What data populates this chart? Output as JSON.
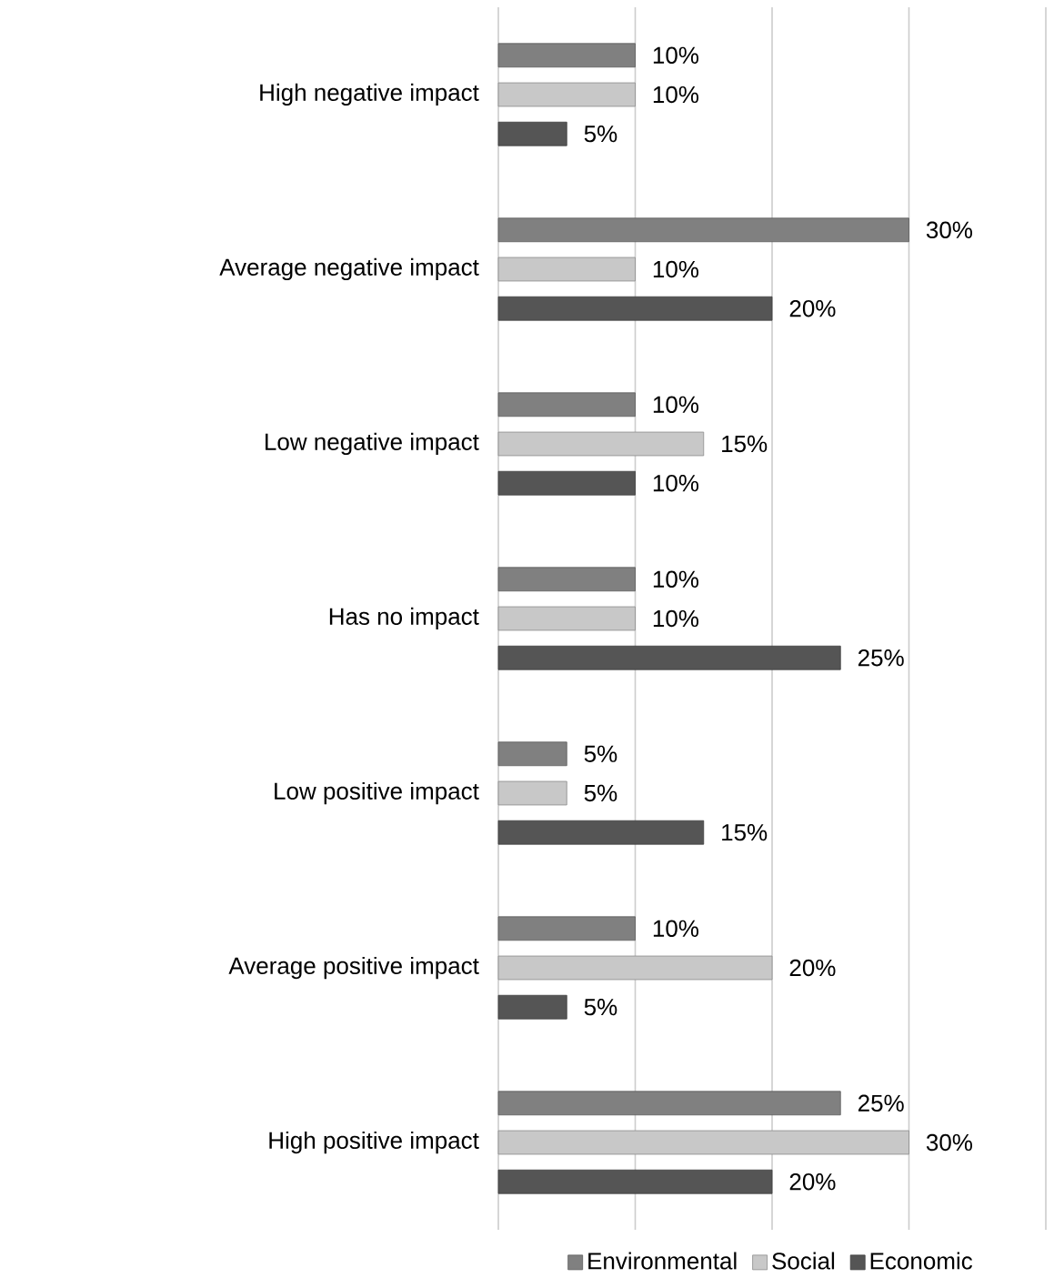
{
  "chart_data": {
    "type": "bar",
    "orientation": "horizontal",
    "categories": [
      "High negative impact",
      "Average negative impact",
      "Low negative impact",
      "Has no impact",
      "Low positive impact",
      "Average positive impact",
      "High positive impact"
    ],
    "series": [
      {
        "name": "Environmental",
        "color": "#808080",
        "values": [
          10,
          30,
          10,
          10,
          5,
          10,
          25
        ],
        "value_labels": [
          "10%",
          "30%",
          "10%",
          "10%",
          "5%",
          "10%",
          "25%"
        ]
      },
      {
        "name": "Social",
        "color": "#c8c8c8",
        "values": [
          10,
          10,
          15,
          10,
          5,
          20,
          30
        ],
        "value_labels": [
          "10%",
          "10%",
          "15%",
          "10%",
          "5%",
          "20%",
          "30%"
        ]
      },
      {
        "name": "Economic",
        "color": "#555555",
        "values": [
          5,
          20,
          10,
          25,
          15,
          5,
          20
        ],
        "value_labels": [
          "5%",
          "20%",
          "10%",
          "25%",
          "15%",
          "5%",
          "20%"
        ]
      }
    ],
    "xlim": [
      0,
      40
    ],
    "xticks": [
      {
        "value": 0,
        "label": null
      },
      {
        "value": 10,
        "label": null
      },
      {
        "value": 20,
        "label": null
      },
      {
        "value": 30,
        "label": null
      },
      {
        "value": 40,
        "label": null
      }
    ],
    "tick_labels": "y",
    "grid": "x",
    "legend": "bottom"
  }
}
